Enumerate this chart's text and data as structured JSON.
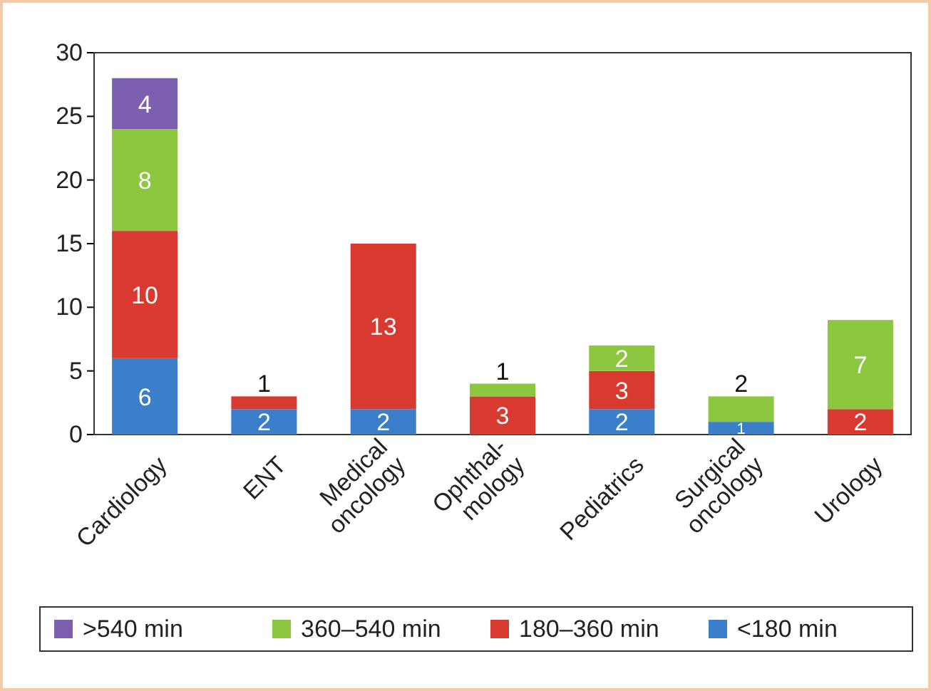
{
  "chart_data": {
    "type": "bar",
    "stacked": true,
    "categories": [
      "Cardiology",
      "ENT",
      "Medical oncology",
      "Ophthal-mology",
      "Pediatrics",
      "Surgical oncology",
      "Urology"
    ],
    "series": [
      {
        "name": "<180 min",
        "color": "#3b7fcb",
        "values": [
          6,
          2,
          2,
          null,
          2,
          1,
          null
        ]
      },
      {
        "name": "180–360 min",
        "color": "#d93a30",
        "values": [
          10,
          1,
          13,
          3,
          3,
          null,
          2
        ]
      },
      {
        "name": "360–540 min",
        "color": "#8dc63f",
        "values": [
          8,
          null,
          null,
          1,
          2,
          2,
          7
        ]
      },
      {
        "name": ">540 min",
        "color": "#7c5fae",
        "values": [
          4,
          null,
          null,
          null,
          null,
          null,
          null
        ]
      }
    ],
    "ylim": [
      0,
      30
    ],
    "yticks": [
      0,
      5,
      10,
      15,
      20,
      25,
      30
    ],
    "data_labels": true,
    "legend": "bottom",
    "grid": false
  }
}
